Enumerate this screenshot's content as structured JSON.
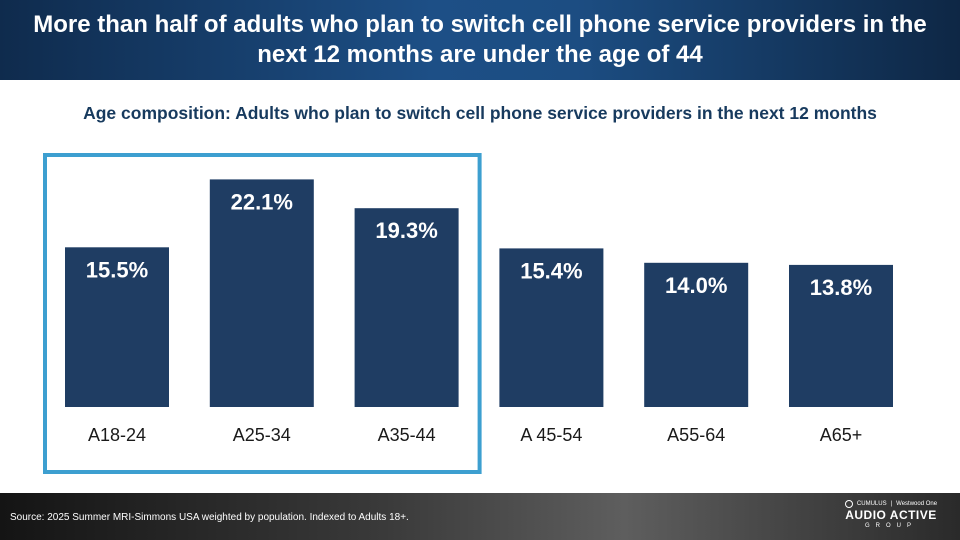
{
  "header": {
    "title": "More than half of adults who plan to switch cell phone service providers in the next 12 months are under the age of 44"
  },
  "chart_data": {
    "type": "bar",
    "title": "Age composition: Adults who plan to switch cell phone service providers in the next 12 months",
    "categories": [
      "A18-24",
      "A25-34",
      "A35-44",
      "A 45-54",
      "A55-64",
      "A65+"
    ],
    "values": [
      15.5,
      22.1,
      19.3,
      15.4,
      14.0,
      13.8
    ],
    "data_labels": [
      "15.5%",
      "22.1%",
      "19.3%",
      "15.4%",
      "14.0%",
      "13.8%"
    ],
    "highlighted_categories": [
      "A18-24",
      "A25-34",
      "A35-44"
    ],
    "bar_color": "#1f3d63",
    "highlight_box_color": "#3d9fd0",
    "grid": false,
    "legend": false
  },
  "footer": {
    "source": "Source: 2025 Summer MRI-Simmons USA weighted by population.  Indexed to Adults 18+.",
    "logo_top_left": "CUMULUS",
    "logo_top_right": "Westwood One",
    "logo_main": "AUDIO ACTIVE",
    "logo_sub": "GROUP"
  }
}
